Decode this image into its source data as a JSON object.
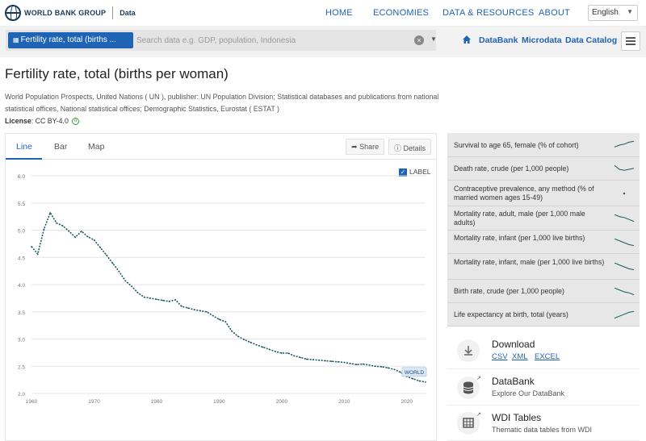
{
  "nav": {
    "brand": "WORLD BANK GROUP",
    "brand_section": "Data",
    "links": [
      "HOME",
      "ECONOMIES",
      "DATA & RESOURCES",
      "ABOUT"
    ],
    "language": "English"
  },
  "search": {
    "chip_label": "Fertility rate, total (births ...",
    "placeholder": "Search data e.g. GDP, population, Indonesia",
    "links": [
      "DataBank",
      "Microdata",
      "Data Catalog"
    ]
  },
  "page": {
    "title": "Fertility rate, total (births per woman)",
    "source": "World Population Prospects, United Nations ( UN ), publisher: UN Population Division; Statistical databases and publications from national statistical offices, National statistical offices; Demographic Statistics, Eurostat ( ESTAT )",
    "license_label": "License",
    "license_value": ": CC BY-4.0"
  },
  "chart_tabs": [
    "Line",
    "Bar",
    "Map"
  ],
  "chart_buttons": {
    "share": "Share",
    "details": "Details"
  },
  "label_toggle": "LABEL",
  "chart_data": {
    "type": "line",
    "title": "Fertility rate, total (births per woman)",
    "xlabel": "",
    "ylabel": "",
    "xlim": [
      1960,
      2023
    ],
    "ylim": [
      2.0,
      6.0
    ],
    "xticks": [
      "1960",
      "1970",
      "1980",
      "1990",
      "2000",
      "2010",
      "2020"
    ],
    "yticks": [
      "2.0",
      "2.5",
      "3.0",
      "3.5",
      "4.0",
      "4.5",
      "5.0",
      "5.5",
      "6.0"
    ],
    "series": [
      {
        "name": "WORLD",
        "x": [
          1960,
          1961,
          1962,
          1963,
          1964,
          1965,
          1966,
          1967,
          1968,
          1969,
          1970,
          1971,
          1972,
          1973,
          1974,
          1975,
          1976,
          1977,
          1978,
          1979,
          1980,
          1981,
          1982,
          1983,
          1984,
          1985,
          1986,
          1987,
          1988,
          1989,
          1990,
          1991,
          1992,
          1993,
          1994,
          1995,
          1996,
          1997,
          1998,
          1999,
          2000,
          2001,
          2002,
          2003,
          2004,
          2005,
          2006,
          2007,
          2008,
          2009,
          2010,
          2011,
          2012,
          2013,
          2014,
          2015,
          2016,
          2017,
          2018,
          2019,
          2020,
          2021,
          2022,
          2023
        ],
        "values": [
          4.7,
          4.56,
          5.02,
          5.32,
          5.13,
          5.08,
          4.98,
          4.87,
          4.98,
          4.88,
          4.82,
          4.68,
          4.54,
          4.39,
          4.24,
          4.07,
          3.97,
          3.85,
          3.77,
          3.75,
          3.73,
          3.71,
          3.69,
          3.72,
          3.6,
          3.57,
          3.54,
          3.52,
          3.5,
          3.43,
          3.36,
          3.32,
          3.15,
          3.05,
          2.99,
          2.94,
          2.89,
          2.85,
          2.81,
          2.77,
          2.74,
          2.74,
          2.69,
          2.66,
          2.63,
          2.62,
          2.61,
          2.6,
          2.59,
          2.58,
          2.57,
          2.55,
          2.53,
          2.54,
          2.52,
          2.5,
          2.49,
          2.47,
          2.44,
          2.39,
          2.31,
          2.27,
          2.23,
          2.21
        ]
      }
    ],
    "series_label": "WORLD"
  },
  "related": [
    {
      "label": "Survival to age 65, female (% of cohort)",
      "spark": [
        0.3,
        0.5,
        0.6,
        0.8,
        0.9
      ]
    },
    {
      "label": "Death rate, crude (per 1,000 people)",
      "spark": [
        0.9,
        0.5,
        0.4,
        0.5,
        0.6
      ]
    },
    {
      "label": "Contraceptive prevalence, any method (% of married women ages 15-49)",
      "spark": [
        0.5
      ]
    },
    {
      "label": "Mortality rate, adult, male (per 1,000 male adults)",
      "spark": [
        0.9,
        0.7,
        0.6,
        0.4,
        0.2
      ]
    },
    {
      "label": "Mortality rate, infant (per 1,000 live births)",
      "spark": [
        0.9,
        0.7,
        0.5,
        0.3,
        0.2
      ]
    },
    {
      "label": "Mortality rate, infant, male (per 1,000 live births)",
      "spark": [
        0.9,
        0.7,
        0.5,
        0.3,
        0.2
      ]
    },
    {
      "label": "Birth rate, crude (per 1,000 people)",
      "spark": [
        0.9,
        0.7,
        0.5,
        0.4,
        0.2
      ]
    },
    {
      "label": "Life expectancy at birth, total (years)",
      "spark": [
        0.2,
        0.4,
        0.6,
        0.8,
        0.9
      ]
    }
  ],
  "download": {
    "title": "Download",
    "formats": [
      "CSV",
      "XML",
      "EXCEL"
    ]
  },
  "databank": {
    "title": "DataBank",
    "subtitle": "Explore Our DataBank"
  },
  "wdi": {
    "title": "WDI Tables",
    "subtitle": "Thematic data tables from WDI"
  },
  "colors": {
    "accent": "#1f64b4",
    "line": "#1a5a60",
    "label_bg": "#dbe8f5"
  }
}
